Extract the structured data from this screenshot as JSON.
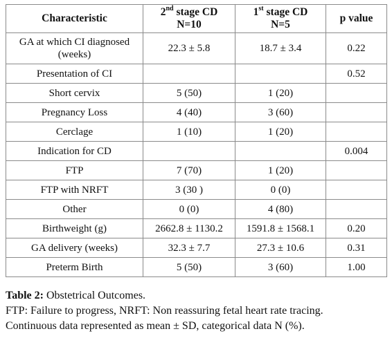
{
  "table": {
    "headers": {
      "characteristic": "Characteristic",
      "col2_ordinal": "2",
      "col2_sup": "nd",
      "col2_stage": " stage CD",
      "col2_n": "N=10",
      "col3_ordinal": "1",
      "col3_sup": "st",
      "col3_stage": " stage CD",
      "col3_n": "N=5",
      "pvalue": "p value"
    },
    "rows": [
      {
        "label": "GA at which CI diagnosed (weeks)",
        "v2": "22.3 ± 5.8",
        "v1": "18.7 ± 3.4",
        "p": "0.22"
      },
      {
        "label": "Presentation of CI",
        "v2": "",
        "v1": "",
        "p": "0.52"
      },
      {
        "label": "Short cervix",
        "v2": "5 (50)",
        "v1": "1 (20)",
        "p": ""
      },
      {
        "label": "Pregnancy Loss",
        "v2": "4 (40)",
        "v1": "3 (60)",
        "p": ""
      },
      {
        "label": "Cerclage",
        "v2": "1 (10)",
        "v1": "1 (20)",
        "p": ""
      },
      {
        "label": "Indication for CD",
        "v2": "",
        "v1": "",
        "p": "0.004"
      },
      {
        "label": "FTP",
        "v2": "7 (70)",
        "v1": "1 (20)",
        "p": ""
      },
      {
        "label": "FTP with NRFT",
        "v2": "3 (30 )",
        "v1": "0 (0)",
        "p": ""
      },
      {
        "label": "Other",
        "v2": "0 (0)",
        "v1": "4 (80)",
        "p": ""
      },
      {
        "label": "Birthweight (g)",
        "v2": "2662.8 ± 1130.2",
        "v1": "1591.8 ± 1568.1",
        "p": "0.20"
      },
      {
        "label": "GA delivery (weeks)",
        "v2": "32.3 ± 7.7",
        "v1": "27.3 ± 10.6",
        "p": "0.31"
      },
      {
        "label": "Preterm Birth",
        "v2": "5 (50)",
        "v1": "3 (60)",
        "p": "1.00"
      }
    ]
  },
  "caption": {
    "label": "Table 2:",
    "title": " Obstetrical Outcomes.",
    "note1": "FTP: Failure to progress, NRFT: Non reassuring fetal heart rate tracing.",
    "note2": "Continuous data represented as mean ± SD, categorical data N (%)."
  }
}
